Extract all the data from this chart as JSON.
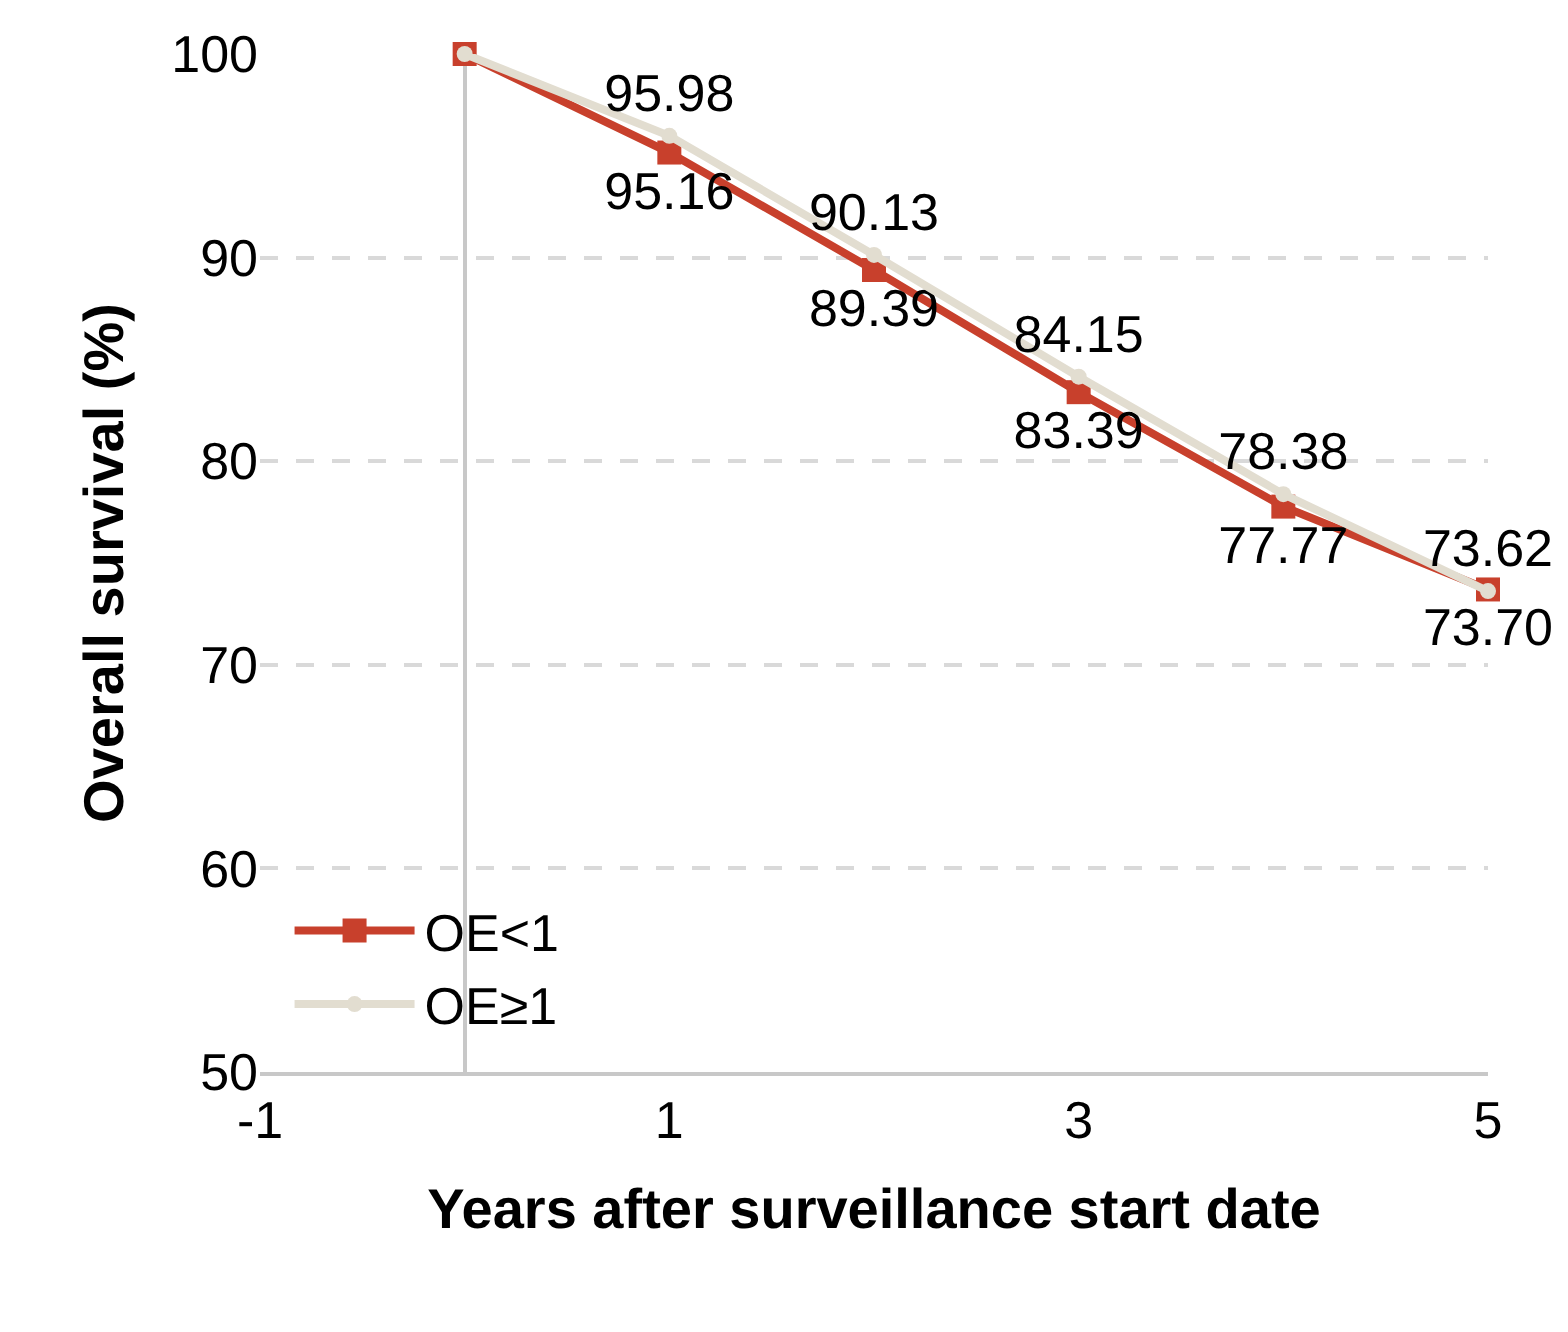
{
  "chart_data": {
    "type": "line",
    "xlabel": "Years after surveillance start date",
    "ylabel": "Overall survival (%)",
    "x": [
      0,
      1,
      2,
      3,
      4,
      5
    ],
    "series": [
      {
        "name": "OE<1",
        "color": "#c8402c",
        "marker": "square",
        "values": [
          100,
          95.16,
          89.39,
          83.39,
          77.77,
          73.7
        ],
        "value_labels": [
          null,
          "95.16",
          "89.39",
          "83.39",
          "77.77",
          "73.70"
        ]
      },
      {
        "name": "OE≥1",
        "color": "#e2ddd0",
        "marker": "circle",
        "values": [
          100,
          95.98,
          90.13,
          84.15,
          78.38,
          73.62
        ],
        "value_labels": [
          null,
          "95.98",
          "90.13",
          "84.15",
          "78.38",
          "73.62"
        ]
      }
    ],
    "xlim": [
      -1,
      5
    ],
    "xticks": [
      -1,
      1,
      3,
      5
    ],
    "ylim": [
      50,
      100
    ],
    "yticks": [
      50,
      60,
      70,
      80,
      90,
      100
    ],
    "grid": "y",
    "legend": "bottom left",
    "line_style": "solid"
  }
}
